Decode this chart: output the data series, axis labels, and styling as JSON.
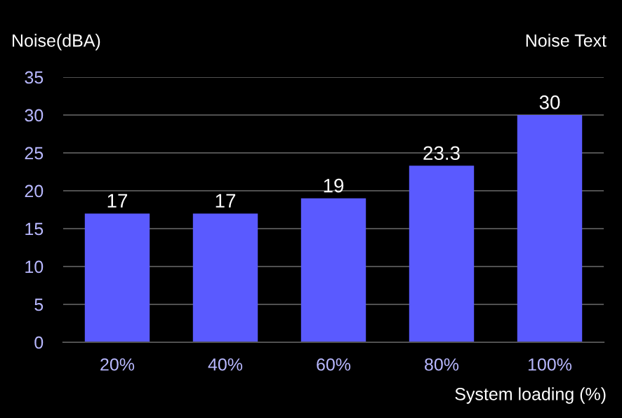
{
  "chart_data": {
    "type": "bar",
    "ylabel": "Noise(dBA)",
    "xlabel": "System loading (%)",
    "annotations": [
      "Noise Text"
    ],
    "categories": [
      "20%",
      "40%",
      "60%",
      "80%",
      "100%"
    ],
    "values": [
      17,
      17,
      19,
      23.3,
      30
    ],
    "value_labels": [
      "17",
      "17",
      "19",
      "23.3",
      "30"
    ],
    "color": "#5a5aff",
    "ylim": [
      0,
      35
    ],
    "yticks": [
      0,
      5,
      10,
      15,
      20,
      25,
      30,
      35
    ],
    "grid": "y"
  }
}
